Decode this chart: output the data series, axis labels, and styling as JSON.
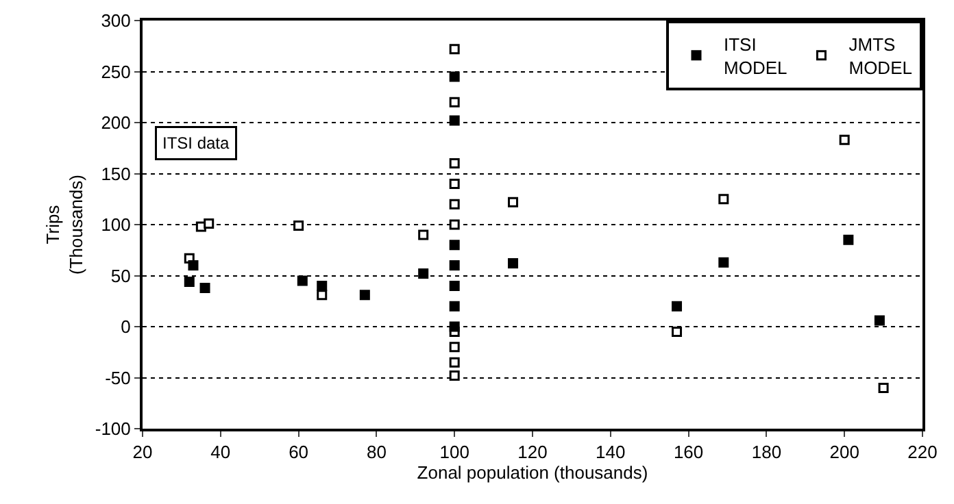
{
  "chart_data": {
    "type": "scatter",
    "xlabel": "Zonal population (thousands)",
    "ylabel": "Trips\n(Thousands)",
    "xlim": [
      20,
      220
    ],
    "xticks": [
      20,
      40,
      60,
      80,
      100,
      120,
      140,
      160,
      180,
      200,
      220
    ],
    "ylim": [
      -100,
      300
    ],
    "yticks": [
      -100,
      -50,
      0,
      50,
      100,
      150,
      200,
      250,
      300
    ],
    "grid": "y",
    "legend": "top right",
    "marker": "square",
    "annotations": [
      "ITSI data"
    ],
    "series": [
      {
        "name": "ITSI MODEL",
        "color": "#000000",
        "x": [
          32,
          33,
          36,
          61,
          66,
          77,
          92,
          100,
          100,
          100,
          100,
          100,
          100,
          100,
          115,
          157,
          169,
          201,
          209
        ],
        "values": [
          44,
          60,
          38,
          45,
          40,
          31,
          52,
          245,
          202,
          80,
          60,
          40,
          20,
          0,
          62,
          20,
          63,
          85,
          6
        ]
      },
      {
        "name": "JMTS MODEL",
        "color": "#ffffff",
        "x": [
          32,
          35,
          37,
          60,
          66,
          92,
          100,
          100,
          100,
          100,
          100,
          100,
          100,
          100,
          100,
          100,
          115,
          157,
          169,
          200,
          210
        ],
        "values": [
          67,
          98,
          101,
          99,
          31,
          90,
          272,
          220,
          160,
          140,
          120,
          100,
          -5,
          -20,
          -35,
          -48,
          122,
          -5,
          125,
          183,
          -60
        ]
      }
    ]
  }
}
